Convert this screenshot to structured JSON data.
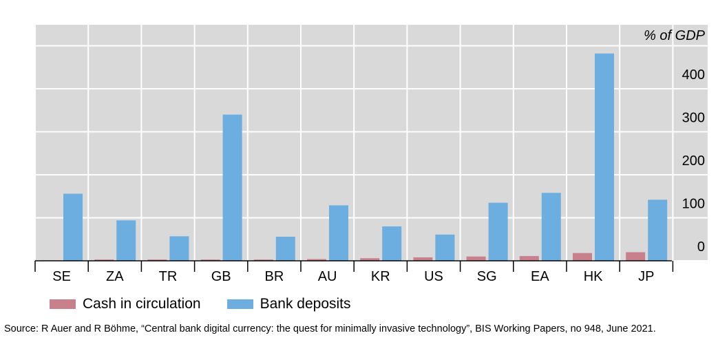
{
  "chart_data": {
    "type": "bar",
    "unit_label": "% of GDP",
    "categories": [
      "SE",
      "ZA",
      "TR",
      "GB",
      "BR",
      "AU",
      "KR",
      "US",
      "SG",
      "EA",
      "HK",
      "JP"
    ],
    "series": [
      {
        "name": "Cash in circulation",
        "color": "#c9808d",
        "values": [
          1,
          3,
          3,
          3,
          3,
          4,
          6,
          8,
          10,
          11,
          18,
          20
        ]
      },
      {
        "name": "Bank deposits",
        "color": "#6caee0",
        "values": [
          156,
          94,
          57,
          340,
          56,
          129,
          80,
          61,
          135,
          158,
          482,
          142
        ]
      }
    ],
    "yticks": [
      0,
      100,
      200,
      300,
      400
    ],
    "ylim": [
      0,
      540
    ],
    "grid": true,
    "background": "#d9d9d9",
    "legend_position": "bottom-left"
  },
  "source": "Source: R Auer and R Böhme, “Central bank digital currency: the quest for minimally invasive technology”, BIS Working Papers, no 948, June 2021."
}
